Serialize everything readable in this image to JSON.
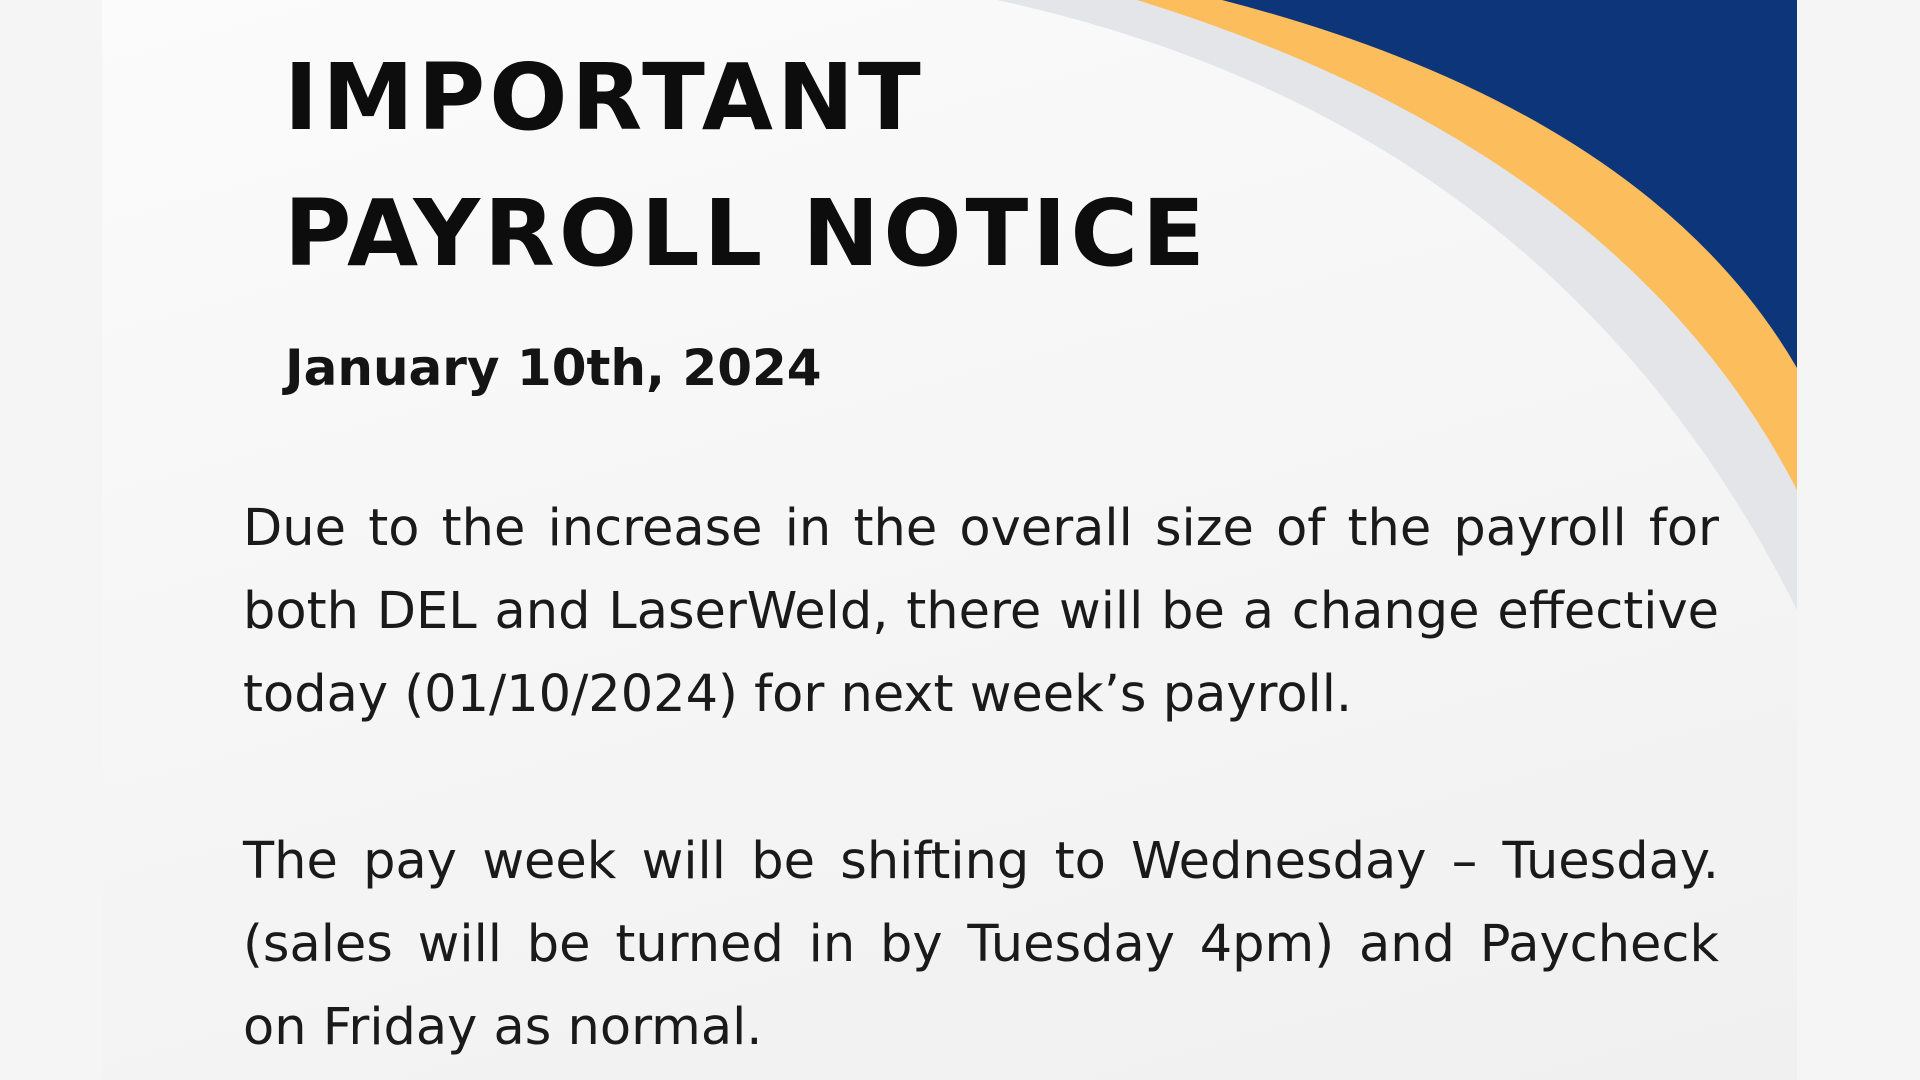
{
  "notice": {
    "title_line_1": "IMPORTANT",
    "title_line_2": "PAYROLL NOTICE",
    "date": "January 10th, 2024",
    "paragraph_1": "Due to the increase in the overall size of the payroll for both DEL and LaserWeld, there will be a change effective today (01/10/2024) for next week’s payroll.",
    "paragraph_2": "The pay week will be shifting to Wednesday – Tuesday. (sales will be turned in by Tuesday 4pm) and Paycheck on Friday as normal."
  },
  "colors": {
    "navy": "#0c357a",
    "gold": "#fcbd5c",
    "light_gray": "#e4e5e8",
    "text": "#111111"
  }
}
